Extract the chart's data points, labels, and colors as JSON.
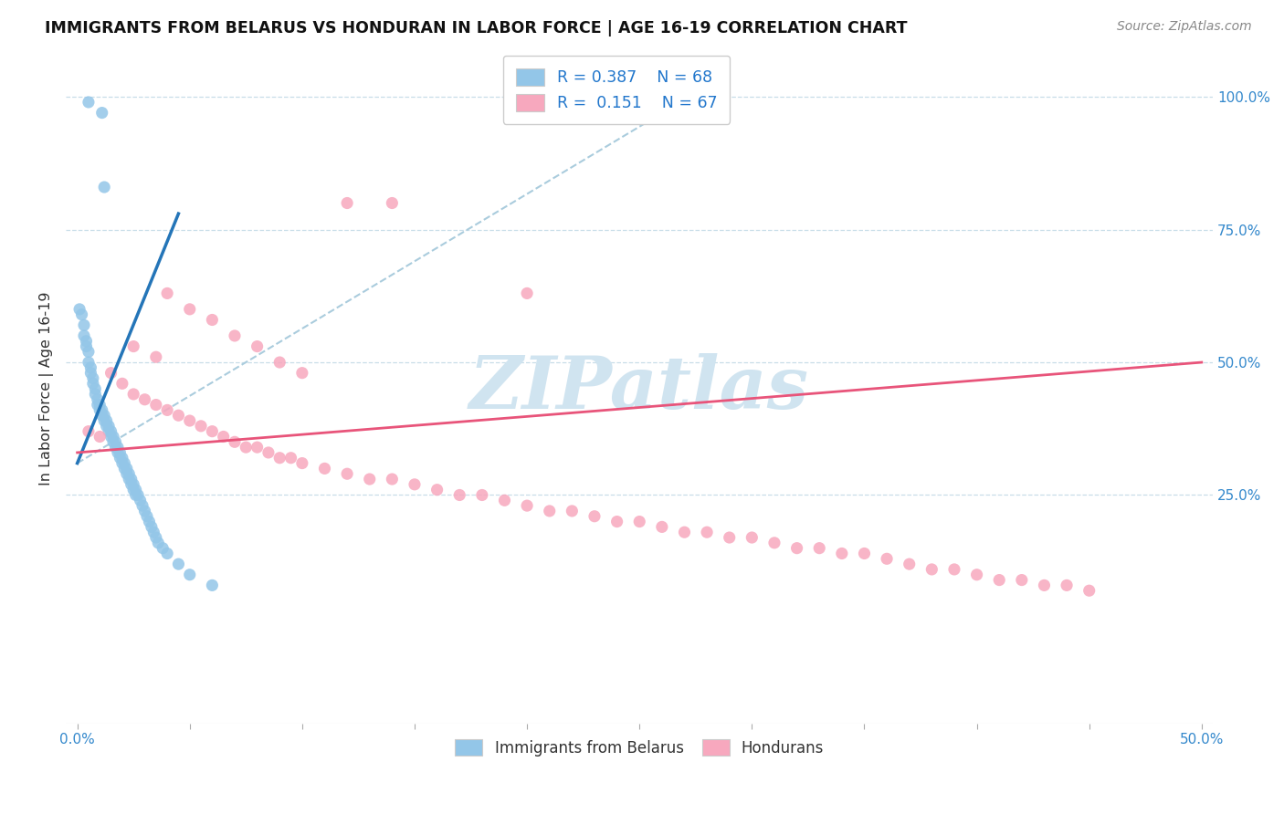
{
  "title": "IMMIGRANTS FROM BELARUS VS HONDURAN IN LABOR FORCE | AGE 16-19 CORRELATION CHART",
  "source": "Source: ZipAtlas.com",
  "ylabel": "In Labor Force | Age 16-19",
  "xlim": [
    -0.005,
    0.505
  ],
  "ylim": [
    -0.18,
    1.08
  ],
  "ytick_positions": [
    0.25,
    0.5,
    0.75,
    1.0
  ],
  "ytick_labels": [
    "25.0%",
    "50.0%",
    "75.0%",
    "100.0%"
  ],
  "xtick_positions": [
    0.0,
    0.05,
    0.1,
    0.15,
    0.2,
    0.25,
    0.3,
    0.35,
    0.4,
    0.45,
    0.5
  ],
  "xtick_labels_show": [
    "0.0%",
    "",
    "",
    "",
    "",
    "",
    "",
    "",
    "",
    "",
    "50.0%"
  ],
  "legend_r_belarus": "0.387",
  "legend_n_belarus": "68",
  "legend_r_honduran": "0.151",
  "legend_n_honduran": "67",
  "blue_color": "#93c6e8",
  "pink_color": "#f7a8be",
  "trendline_blue": "#2475b8",
  "trendline_pink": "#e8547a",
  "trendline_gray_color": "#aaccdd",
  "grid_color": "#c8dde8",
  "watermark_color": "#d0e4f0",
  "blue_x": [
    0.005,
    0.011,
    0.012,
    0.001,
    0.002,
    0.003,
    0.003,
    0.004,
    0.004,
    0.005,
    0.005,
    0.006,
    0.006,
    0.007,
    0.007,
    0.008,
    0.008,
    0.009,
    0.009,
    0.01,
    0.01,
    0.011,
    0.011,
    0.012,
    0.012,
    0.013,
    0.013,
    0.014,
    0.014,
    0.015,
    0.015,
    0.016,
    0.016,
    0.017,
    0.017,
    0.018,
    0.018,
    0.019,
    0.019,
    0.02,
    0.02,
    0.021,
    0.021,
    0.022,
    0.022,
    0.023,
    0.023,
    0.024,
    0.024,
    0.025,
    0.025,
    0.026,
    0.026,
    0.027,
    0.028,
    0.029,
    0.03,
    0.031,
    0.032,
    0.033,
    0.034,
    0.035,
    0.036,
    0.038,
    0.04,
    0.045,
    0.05,
    0.06
  ],
  "blue_y": [
    0.99,
    0.97,
    0.83,
    0.6,
    0.59,
    0.57,
    0.55,
    0.54,
    0.53,
    0.52,
    0.5,
    0.49,
    0.48,
    0.47,
    0.46,
    0.45,
    0.44,
    0.43,
    0.42,
    0.42,
    0.41,
    0.41,
    0.4,
    0.4,
    0.39,
    0.39,
    0.38,
    0.38,
    0.37,
    0.37,
    0.36,
    0.36,
    0.35,
    0.35,
    0.34,
    0.34,
    0.33,
    0.33,
    0.32,
    0.32,
    0.31,
    0.31,
    0.3,
    0.3,
    0.29,
    0.29,
    0.28,
    0.28,
    0.27,
    0.27,
    0.26,
    0.26,
    0.25,
    0.25,
    0.24,
    0.23,
    0.22,
    0.21,
    0.2,
    0.19,
    0.18,
    0.17,
    0.16,
    0.15,
    0.14,
    0.12,
    0.1,
    0.08
  ],
  "pink_x": [
    0.005,
    0.01,
    0.015,
    0.02,
    0.025,
    0.03,
    0.035,
    0.04,
    0.045,
    0.05,
    0.055,
    0.06,
    0.065,
    0.07,
    0.075,
    0.08,
    0.085,
    0.09,
    0.095,
    0.1,
    0.11,
    0.12,
    0.13,
    0.14,
    0.15,
    0.16,
    0.17,
    0.18,
    0.19,
    0.2,
    0.21,
    0.22,
    0.23,
    0.24,
    0.25,
    0.26,
    0.27,
    0.28,
    0.29,
    0.3,
    0.31,
    0.32,
    0.33,
    0.34,
    0.35,
    0.36,
    0.37,
    0.38,
    0.39,
    0.4,
    0.41,
    0.42,
    0.43,
    0.44,
    0.45,
    0.025,
    0.035,
    0.04,
    0.05,
    0.06,
    0.07,
    0.08,
    0.09,
    0.1,
    0.12,
    0.14,
    0.2
  ],
  "pink_y": [
    0.37,
    0.36,
    0.48,
    0.46,
    0.44,
    0.43,
    0.42,
    0.41,
    0.4,
    0.39,
    0.38,
    0.37,
    0.36,
    0.35,
    0.34,
    0.34,
    0.33,
    0.32,
    0.32,
    0.31,
    0.3,
    0.29,
    0.28,
    0.28,
    0.27,
    0.26,
    0.25,
    0.25,
    0.24,
    0.23,
    0.22,
    0.22,
    0.21,
    0.2,
    0.2,
    0.19,
    0.18,
    0.18,
    0.17,
    0.17,
    0.16,
    0.15,
    0.15,
    0.14,
    0.14,
    0.13,
    0.12,
    0.11,
    0.11,
    0.1,
    0.09,
    0.09,
    0.08,
    0.08,
    0.07,
    0.53,
    0.51,
    0.63,
    0.6,
    0.58,
    0.55,
    0.53,
    0.5,
    0.48,
    0.8,
    0.8,
    0.63
  ],
  "blue_trendline_x": [
    0.0,
    0.045
  ],
  "blue_trendline_y": [
    0.31,
    0.78
  ],
  "gray_trendline_x": [
    0.0,
    0.28
  ],
  "gray_trendline_y": [
    0.31,
    1.02
  ],
  "pink_trendline_x": [
    0.0,
    0.5
  ],
  "pink_trendline_y": [
    0.33,
    0.5
  ]
}
